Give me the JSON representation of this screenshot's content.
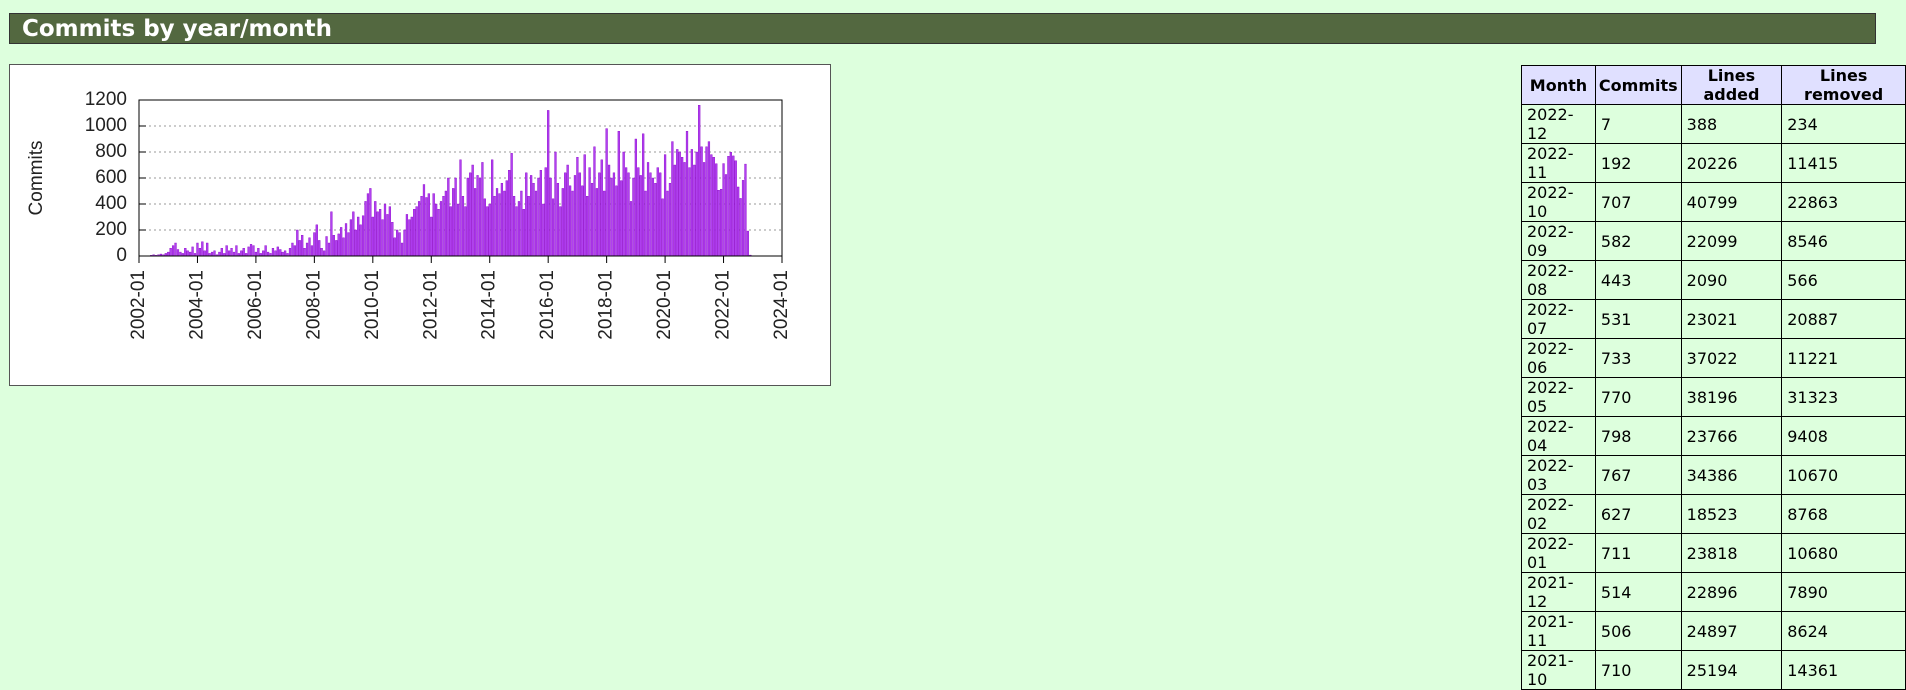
{
  "header": {
    "title": "Commits by year/month"
  },
  "chart_data": {
    "type": "bar",
    "ylabel": "Commits",
    "color": "#b040f0",
    "grid": true,
    "xlim": [
      "2002-01",
      "2024-01"
    ],
    "xticks": [
      "2002-01",
      "2004-01",
      "2006-01",
      "2008-01",
      "2010-01",
      "2012-01",
      "2014-01",
      "2016-01",
      "2018-01",
      "2020-01",
      "2022-01",
      "2024-01"
    ],
    "ylim": [
      0,
      1200
    ],
    "yticks": [
      0,
      200,
      400,
      600,
      800,
      1000,
      1200
    ],
    "x": [
      "2002-06",
      "2002-07",
      "2002-08",
      "2002-09",
      "2002-10",
      "2002-11",
      "2002-12",
      "2003-01",
      "2003-02",
      "2003-03",
      "2003-04",
      "2003-05",
      "2003-06",
      "2003-07",
      "2003-08",
      "2003-09",
      "2003-10",
      "2003-11",
      "2003-12",
      "2004-01",
      "2004-02",
      "2004-03",
      "2004-04",
      "2004-05",
      "2004-06",
      "2004-07",
      "2004-08",
      "2004-09",
      "2004-10",
      "2004-11",
      "2004-12",
      "2005-01",
      "2005-02",
      "2005-03",
      "2005-04",
      "2005-05",
      "2005-06",
      "2005-07",
      "2005-08",
      "2005-09",
      "2005-10",
      "2005-11",
      "2005-12",
      "2006-01",
      "2006-02",
      "2006-03",
      "2006-04",
      "2006-05",
      "2006-06",
      "2006-07",
      "2006-08",
      "2006-09",
      "2006-10",
      "2006-11",
      "2006-12",
      "2007-01",
      "2007-02",
      "2007-03",
      "2007-04",
      "2007-05",
      "2007-06",
      "2007-07",
      "2007-08",
      "2007-09",
      "2007-10",
      "2007-11",
      "2007-12",
      "2008-01",
      "2008-02",
      "2008-03",
      "2008-04",
      "2008-05",
      "2008-06",
      "2008-07",
      "2008-08",
      "2008-09",
      "2008-10",
      "2008-11",
      "2008-12",
      "2009-01",
      "2009-02",
      "2009-03",
      "2009-04",
      "2009-05",
      "2009-06",
      "2009-07",
      "2009-08",
      "2009-09",
      "2009-10",
      "2009-11",
      "2009-12",
      "2010-01",
      "2010-02",
      "2010-03",
      "2010-04",
      "2010-05",
      "2010-06",
      "2010-07",
      "2010-08",
      "2010-09",
      "2010-10",
      "2010-11",
      "2010-12",
      "2011-01",
      "2011-02",
      "2011-03",
      "2011-04",
      "2011-05",
      "2011-06",
      "2011-07",
      "2011-08",
      "2011-09",
      "2011-10",
      "2011-11",
      "2011-12",
      "2012-01",
      "2012-02",
      "2012-03",
      "2012-04",
      "2012-05",
      "2012-06",
      "2012-07",
      "2012-08",
      "2012-09",
      "2012-10",
      "2012-11",
      "2012-12",
      "2013-01",
      "2013-02",
      "2013-03",
      "2013-04",
      "2013-05",
      "2013-06",
      "2013-07",
      "2013-08",
      "2013-09",
      "2013-10",
      "2013-11",
      "2013-12",
      "2014-01",
      "2014-02",
      "2014-03",
      "2014-04",
      "2014-05",
      "2014-06",
      "2014-07",
      "2014-08",
      "2014-09",
      "2014-10",
      "2014-11",
      "2014-12",
      "2015-01",
      "2015-02",
      "2015-03",
      "2015-04",
      "2015-05",
      "2015-06",
      "2015-07",
      "2015-08",
      "2015-09",
      "2015-10",
      "2015-11",
      "2015-12",
      "2016-01",
      "2016-02",
      "2016-03",
      "2016-04",
      "2016-05",
      "2016-06",
      "2016-07",
      "2016-08",
      "2016-09",
      "2016-10",
      "2016-11",
      "2016-12",
      "2017-01",
      "2017-02",
      "2017-03",
      "2017-04",
      "2017-05",
      "2017-06",
      "2017-07",
      "2017-08",
      "2017-09",
      "2017-10",
      "2017-11",
      "2017-12",
      "2018-01",
      "2018-02",
      "2018-03",
      "2018-04",
      "2018-05",
      "2018-06",
      "2018-07",
      "2018-08",
      "2018-09",
      "2018-10",
      "2018-11",
      "2018-12",
      "2019-01",
      "2019-02",
      "2019-03",
      "2019-04",
      "2019-05",
      "2019-06",
      "2019-07",
      "2019-08",
      "2019-09",
      "2019-10",
      "2019-11",
      "2019-12",
      "2020-01",
      "2020-02",
      "2020-03",
      "2020-04",
      "2020-05",
      "2020-06",
      "2020-07",
      "2020-08",
      "2020-09",
      "2020-10",
      "2020-11",
      "2020-12",
      "2021-01",
      "2021-02",
      "2021-03",
      "2021-04",
      "2021-05",
      "2021-06",
      "2021-07",
      "2021-08",
      "2021-09",
      "2021-10",
      "2021-11",
      "2021-12",
      "2022-01",
      "2022-02",
      "2022-03",
      "2022-04",
      "2022-05",
      "2022-06",
      "2022-07",
      "2022-08",
      "2022-09",
      "2022-10",
      "2022-11",
      "2022-12"
    ],
    "values": [
      5,
      10,
      5,
      10,
      15,
      10,
      20,
      30,
      60,
      80,
      100,
      50,
      30,
      20,
      60,
      40,
      30,
      70,
      20,
      100,
      60,
      110,
      40,
      100,
      20,
      30,
      40,
      10,
      30,
      60,
      20,
      80,
      40,
      60,
      30,
      80,
      20,
      40,
      60,
      20,
      70,
      90,
      80,
      30,
      60,
      20,
      40,
      80,
      30,
      20,
      60,
      40,
      70,
      50,
      30,
      40,
      20,
      60,
      100,
      80,
      200,
      120,
      160,
      60,
      100,
      140,
      80,
      180,
      240,
      120,
      60,
      40,
      150,
      100,
      340,
      160,
      120,
      170,
      220,
      140,
      250,
      180,
      280,
      340,
      200,
      300,
      240,
      310,
      420,
      480,
      520,
      300,
      420,
      340,
      360,
      280,
      400,
      320,
      380,
      260,
      140,
      200,
      180,
      100,
      200,
      320,
      280,
      300,
      360,
      380,
      420,
      460,
      550,
      450,
      480,
      300,
      480,
      400,
      360,
      420,
      460,
      500,
      600,
      380,
      520,
      600,
      400,
      740,
      460,
      380,
      600,
      640,
      700,
      520,
      620,
      600,
      720,
      440,
      380,
      400,
      740,
      460,
      520,
      480,
      560,
      500,
      580,
      660,
      790,
      460,
      380,
      420,
      500,
      360,
      640,
      460,
      620,
      560,
      500,
      600,
      660,
      400,
      680,
      1120,
      600,
      440,
      800,
      560,
      380,
      520,
      640,
      700,
      540,
      500,
      620,
      760,
      640,
      540,
      780,
      460,
      680,
      560,
      840,
      520,
      640,
      740,
      500,
      980,
      700,
      600,
      640,
      540,
      960,
      580,
      800,
      680,
      640,
      420,
      600,
      900,
      680,
      620,
      940,
      500,
      720,
      640,
      600,
      560,
      680,
      640,
      440,
      780,
      500,
      560,
      880,
      700,
      820,
      800,
      760,
      720,
      960,
      680,
      820,
      700,
      800,
      1160,
      840,
      720,
      840,
      880,
      780,
      760,
      710,
      506,
      514,
      711,
      627,
      767,
      798,
      770,
      733,
      531,
      443,
      582,
      707,
      192,
      7
    ]
  },
  "table": {
    "header": [
      "Month",
      "Commits",
      "Lines added",
      "Lines removed"
    ],
    "rows": [
      [
        "2022-12",
        7,
        388,
        234
      ],
      [
        "2022-11",
        192,
        20226,
        11415
      ],
      [
        "2022-10",
        707,
        40799,
        22863
      ],
      [
        "2022-09",
        582,
        22099,
        8546
      ],
      [
        "2022-08",
        443,
        2090,
        566
      ],
      [
        "2022-07",
        531,
        23021,
        20887
      ],
      [
        "2022-06",
        733,
        37022,
        11221
      ],
      [
        "2022-05",
        770,
        38196,
        31323
      ],
      [
        "2022-04",
        798,
        23766,
        9408
      ],
      [
        "2022-03",
        767,
        34386,
        10670
      ],
      [
        "2022-02",
        627,
        18523,
        8768
      ],
      [
        "2022-01",
        711,
        23818,
        10680
      ],
      [
        "2021-12",
        514,
        22896,
        7890
      ],
      [
        "2021-11",
        506,
        24897,
        8624
      ],
      [
        "2021-10",
        710,
        25194,
        14361
      ]
    ]
  }
}
